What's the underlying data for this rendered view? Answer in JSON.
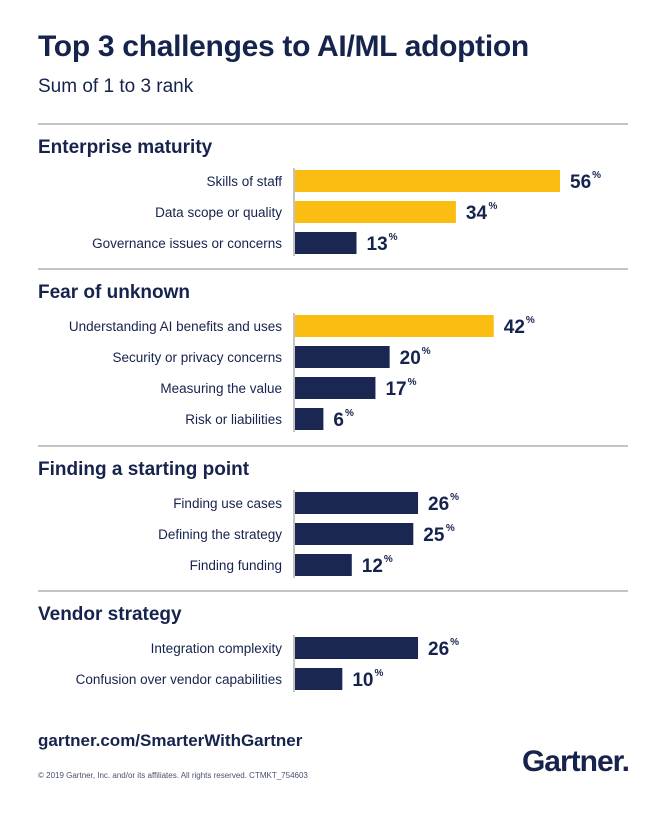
{
  "header": {
    "title": "Top 3 challenges to AI/ML adoption",
    "subtitle": "Sum of 1 to 3 rank"
  },
  "footer": {
    "link": "gartner.com/SmarterWithGartner",
    "copyright": "© 2019 Gartner, Inc. and/or its affiliates. All rights reserved. CTMKT_754603",
    "logo": "Gartner",
    "logo_dot": "."
  },
  "colors": {
    "highlight": "#fbbd12",
    "bar": "#1a2752",
    "text": "#16234d",
    "rule": "#8a8a8a"
  },
  "chart_data": {
    "type": "bar",
    "orientation": "horizontal",
    "title": "Top 3 challenges to AI/ML adoption",
    "subtitle": "Sum of 1 to 3 rank",
    "unit": "%",
    "xlim": [
      0,
      56
    ],
    "groups": [
      {
        "name": "Enterprise maturity",
        "items": [
          {
            "label": "Skills of staff",
            "value": 56,
            "highlight": true
          },
          {
            "label": "Data scope or quality",
            "value": 34,
            "highlight": true
          },
          {
            "label": "Governance issues or concerns",
            "value": 13,
            "highlight": false
          }
        ]
      },
      {
        "name": "Fear of unknown",
        "items": [
          {
            "label": "Understanding AI benefits and uses",
            "value": 42,
            "highlight": true
          },
          {
            "label": "Security or privacy concerns",
            "value": 20,
            "highlight": false
          },
          {
            "label": "Measuring the value",
            "value": 17,
            "highlight": false
          },
          {
            "label": "Risk or liabilities",
            "value": 6,
            "highlight": false
          }
        ]
      },
      {
        "name": "Finding a starting point",
        "items": [
          {
            "label": "Finding use cases",
            "value": 26,
            "highlight": false
          },
          {
            "label": "Defining the strategy",
            "value": 25,
            "highlight": false
          },
          {
            "label": "Finding funding",
            "value": 12,
            "highlight": false
          }
        ]
      },
      {
        "name": "Vendor strategy",
        "items": [
          {
            "label": "Integration complexity",
            "value": 26,
            "highlight": false
          },
          {
            "label": "Confusion over vendor capabilities",
            "value": 10,
            "highlight": false
          }
        ]
      }
    ]
  }
}
